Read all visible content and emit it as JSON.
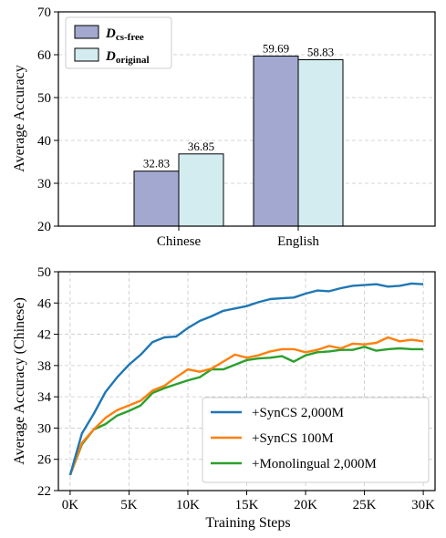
{
  "chart_data": [
    {
      "type": "bar",
      "title": "",
      "xlabel": "",
      "ylabel": "Average Accuracy",
      "ylim": [
        20,
        70
      ],
      "yticks": [
        20,
        30,
        40,
        50,
        60,
        70
      ],
      "grid": true,
      "legend_position": "top-left",
      "categories": [
        "Chinese",
        "English"
      ],
      "series": [
        {
          "name": "D",
          "sub": "cs-free",
          "color": "#a2a8cf",
          "values": [
            32.83,
            59.69
          ],
          "labels": [
            "32.83",
            "59.69"
          ]
        },
        {
          "name": "D",
          "sub": "original",
          "color": "#d3ecf0",
          "values": [
            36.85,
            58.83
          ],
          "labels": [
            "36.85",
            "58.83"
          ]
        }
      ]
    },
    {
      "type": "line",
      "title": "",
      "xlabel": "Training Steps",
      "ylabel": "Average Accuracy (Chinese)",
      "xlim": [
        -1000,
        31000
      ],
      "ylim": [
        22,
        50
      ],
      "xticks": [
        0,
        5000,
        10000,
        15000,
        20000,
        25000,
        30000
      ],
      "xtick_labels": [
        "0K",
        "5K",
        "10K",
        "15K",
        "20K",
        "25K",
        "30K"
      ],
      "yticks": [
        22,
        26,
        30,
        34,
        38,
        42,
        46,
        50
      ],
      "grid": true,
      "legend_position": "bottom-right",
      "x": [
        0,
        1000,
        2000,
        3000,
        4000,
        5000,
        6000,
        7000,
        8000,
        9000,
        10000,
        11000,
        12000,
        13000,
        14000,
        15000,
        16000,
        17000,
        18000,
        19000,
        20000,
        21000,
        22000,
        23000,
        24000,
        25000,
        26000,
        27000,
        28000,
        29000,
        30000
      ],
      "series": [
        {
          "name": "+SynCS 2,000M",
          "color": "#1f77b4",
          "values": [
            24.0,
            29.3,
            31.8,
            34.6,
            36.5,
            38.1,
            39.4,
            41.0,
            41.6,
            41.7,
            42.8,
            43.7,
            44.3,
            45.0,
            45.3,
            45.6,
            46.1,
            46.5,
            46.6,
            46.7,
            47.2,
            47.6,
            47.5,
            47.9,
            48.2,
            48.3,
            48.4,
            48.1,
            48.2,
            48.5,
            48.4
          ]
        },
        {
          "name": "+SynCS 100M",
          "color": "#ff7f0e",
          "values": [
            24.0,
            28.1,
            29.8,
            31.3,
            32.3,
            32.9,
            33.5,
            34.8,
            35.4,
            36.5,
            37.5,
            37.2,
            37.6,
            38.5,
            39.4,
            39.0,
            39.3,
            39.8,
            40.1,
            40.1,
            39.7,
            40.0,
            40.5,
            40.2,
            40.8,
            40.7,
            40.9,
            41.6,
            41.1,
            41.3,
            41.1
          ]
        },
        {
          "name": "+Monolingual 2,000M",
          "color": "#2ca02c",
          "values": [
            24.0,
            27.9,
            29.8,
            30.5,
            31.6,
            32.2,
            32.9,
            34.5,
            35.1,
            35.6,
            36.1,
            36.5,
            37.5,
            37.5,
            38.1,
            38.7,
            38.9,
            39.0,
            39.2,
            38.5,
            39.3,
            39.7,
            39.8,
            40.0,
            40.0,
            40.4,
            39.9,
            40.1,
            40.2,
            40.1,
            40.1
          ]
        }
      ]
    }
  ]
}
